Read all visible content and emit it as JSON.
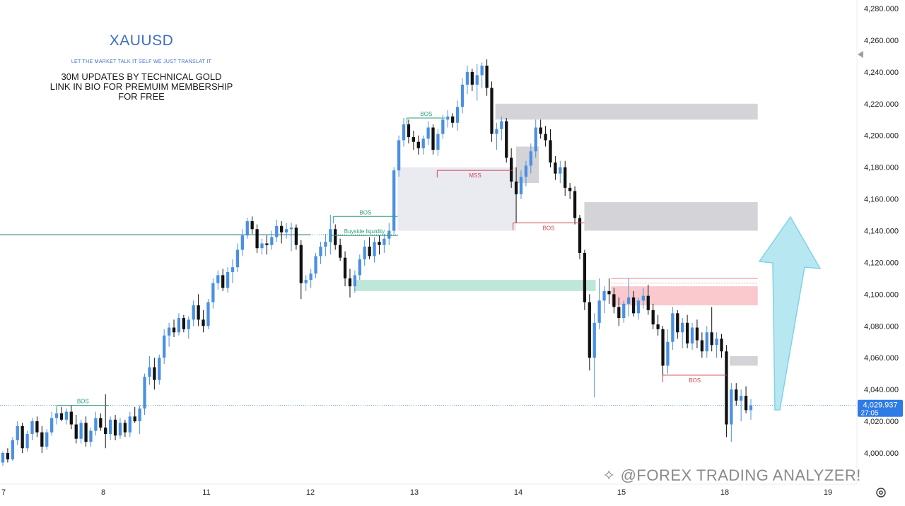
{
  "header": {
    "symbol": "XAUUSD",
    "tagline": "LET THE MARKET TALK IT SELF WE JUST TRANSLAT IT",
    "promo_line1": "30M UPDATES BY TECHNICAL GOLD",
    "promo_line2": "LINK IN BIO FOR PREMUIM MEMBERSHIP",
    "promo_line3": "FOR FREE"
  },
  "watermark": "@FOREX TRADING ANALYZER!",
  "icons": {
    "settings": "gear-icon",
    "scroll": "chevron-left-icon",
    "watermark_logo": "logo-icon"
  },
  "colors": {
    "up_candle": "#4a90e2",
    "down_candle": "#111111",
    "demand_zone": "#8ed6c0",
    "supply_zone": "#f4a0a8",
    "neutral_zone": "#c9c9cf",
    "arrow": "#9fe0ee",
    "price_tag": "#2f7be5"
  },
  "chart_data": {
    "type": "candlestick",
    "title": "XAUUSD",
    "timeframe": "30M",
    "y_axis": {
      "ylim": [
        3992,
        4283
      ],
      "ticks": [
        "4,000.000",
        "4,020.000",
        "4,040.000",
        "4,060.000",
        "4,080.000",
        "4,100.000",
        "4,120.000",
        "4,140.000",
        "4,160.000",
        "4,180.000",
        "4,200.000",
        "4,220.000",
        "4,240.000",
        "4,260.000",
        "4,280.000"
      ]
    },
    "x_axis": {
      "ticks": [
        "7",
        "8",
        "11",
        "12",
        "13",
        "14",
        "15",
        "18",
        "19"
      ]
    },
    "current_price": {
      "value": 4029.937,
      "label": "4,029.937",
      "countdown": "27:05"
    },
    "horizontal_lines": [
      {
        "name": "buyside-liquidity-line",
        "y": 4137.5,
        "style": "solid",
        "color": "#1f6f6a"
      }
    ],
    "annotations": [
      {
        "label": "BOS",
        "color": "#2f9e7d",
        "y": 4030,
        "from_day": 7.55,
        "to_day": 8.17
      },
      {
        "label": "BOS",
        "color": "#2f9e7d",
        "y": 4149,
        "from_day": 12.22,
        "to_day": 12.84
      },
      {
        "label": "Buyside liquidity",
        "color": "#2f9e7d",
        "y": 4137,
        "from_day": 12.2,
        "to_day": 12.84
      },
      {
        "label": "BOS",
        "color": "#2f9e7d",
        "y": 4211,
        "from_day": 12.93,
        "to_day": 13.3
      },
      {
        "label": "MSS",
        "color": "#d0444f",
        "y": 4178,
        "from_day": 13.22,
        "to_day": 13.95
      },
      {
        "label": "BOS",
        "color": "#d0444f",
        "y": 4145,
        "from_day": 13.95,
        "to_day": 14.64
      },
      {
        "label": "BOS",
        "color": "#d0444f",
        "y": 4049,
        "from_day": 15.4,
        "to_day": 16.02
      }
    ],
    "zones": [
      {
        "type": "neutral",
        "from_day": 13.78,
        "to_day": 16.32,
        "y_low": 4210,
        "y_high": 4220
      },
      {
        "type": "neutral-light",
        "from_day": 12.84,
        "to_day": 13.98,
        "y_low": 4140,
        "y_high": 4180
      },
      {
        "type": "neutral",
        "from_day": 13.98,
        "to_day": 14.2,
        "y_low": 4170,
        "y_high": 4193
      },
      {
        "type": "neutral",
        "from_day": 14.64,
        "to_day": 16.32,
        "y_low": 4140,
        "y_high": 4158
      },
      {
        "type": "demand",
        "from_day": 12.42,
        "to_day": 14.75,
        "y_low": 4102,
        "y_high": 4109
      },
      {
        "type": "supply",
        "from_day": 14.9,
        "to_day": 16.32,
        "y_low": 4093,
        "y_high": 4105
      },
      {
        "type": "neutral",
        "from_day": 16.05,
        "to_day": 16.32,
        "y_low": 4055,
        "y_high": 4061
      }
    ],
    "candles": [
      [
        3994,
        4001,
        3992,
        4000
      ],
      [
        4000,
        4003,
        3994,
        3996
      ],
      [
        3996,
        4010,
        3995,
        4008
      ],
      [
        4008,
        4020,
        4005,
        4017
      ],
      [
        4017,
        4019,
        4000,
        4003
      ],
      [
        4003,
        4014,
        4001,
        4012
      ],
      [
        4012,
        4022,
        4008,
        4020
      ],
      [
        4020,
        4023,
        4010,
        4013
      ],
      [
        4013,
        4017,
        4000,
        4004
      ],
      [
        4004,
        4015,
        4002,
        4013
      ],
      [
        4013,
        4026,
        4011,
        4022
      ],
      [
        4022,
        4028,
        4018,
        4025
      ],
      [
        4025,
        4029,
        4020,
        4021
      ],
      [
        4021,
        4028,
        4018,
        4026
      ],
      [
        4026,
        4030,
        4015,
        4018
      ],
      [
        4018,
        4024,
        4006,
        4009
      ],
      [
        4009,
        4021,
        4006,
        4019
      ],
      [
        4019,
        4023,
        4004,
        4007
      ],
      [
        4007,
        4016,
        4004,
        4014
      ],
      [
        4014,
        4026,
        4011,
        4022
      ],
      [
        4022,
        4025,
        4014,
        4016
      ],
      [
        4016,
        4037,
        4003,
        4012
      ],
      [
        4012,
        4023,
        4008,
        4021
      ],
      [
        4021,
        4024,
        4008,
        4011
      ],
      [
        4011,
        4022,
        4009,
        4019
      ],
      [
        4019,
        4021,
        4010,
        4013
      ],
      [
        4013,
        4026,
        4010,
        4023
      ],
      [
        4023,
        4029,
        4019,
        4020
      ],
      [
        4020,
        4030,
        4012,
        4028
      ],
      [
        4028,
        4050,
        4024,
        4048
      ],
      [
        4048,
        4061,
        4043,
        4054
      ],
      [
        4054,
        4060,
        4040,
        4046
      ],
      [
        4046,
        4062,
        4043,
        4060
      ],
      [
        4060,
        4078,
        4056,
        4074
      ],
      [
        4074,
        4082,
        4067,
        4079
      ],
      [
        4079,
        4084,
        4073,
        4076
      ],
      [
        4076,
        4088,
        4074,
        4085
      ],
      [
        4085,
        4087,
        4076,
        4078
      ],
      [
        4078,
        4086,
        4072,
        4084
      ],
      [
        4084,
        4096,
        4080,
        4093
      ],
      [
        4093,
        4100,
        4080,
        4084
      ],
      [
        4084,
        4090,
        4076,
        4080
      ],
      [
        4080,
        4097,
        4078,
        4095
      ],
      [
        4095,
        4110,
        4091,
        4107
      ],
      [
        4107,
        4115,
        4103,
        4112
      ],
      [
        4112,
        4116,
        4102,
        4104
      ],
      [
        4104,
        4117,
        4101,
        4114
      ],
      [
        4114,
        4122,
        4107,
        4117
      ],
      [
        4117,
        4132,
        4114,
        4128
      ],
      [
        4128,
        4141,
        4124,
        4137
      ],
      [
        4137,
        4148,
        4135,
        4146
      ],
      [
        4146,
        4149,
        4138,
        4141
      ],
      [
        4141,
        4144,
        4126,
        4129
      ],
      [
        4129,
        4135,
        4125,
        4132
      ],
      [
        4132,
        4137,
        4125,
        4131
      ],
      [
        4131,
        4140,
        4128,
        4136
      ],
      [
        4136,
        4147,
        4133,
        4143
      ],
      [
        4143,
        4146,
        4132,
        4139
      ],
      [
        4139,
        4145,
        4135,
        4141
      ],
      [
        4141,
        4145,
        4127,
        4142
      ],
      [
        4142,
        4144,
        4128,
        4131
      ],
      [
        4131,
        4134,
        4097,
        4107
      ],
      [
        4107,
        4112,
        4102,
        4109
      ],
      [
        4109,
        4116,
        4104,
        4113
      ],
      [
        4113,
        4126,
        4110,
        4124
      ],
      [
        4124,
        4133,
        4119,
        4130
      ],
      [
        4130,
        4138,
        4124,
        4133
      ],
      [
        4133,
        4150,
        4125,
        4141
      ],
      [
        4141,
        4144,
        4128,
        4131
      ],
      [
        4131,
        4135,
        4121,
        4123
      ],
      [
        4123,
        4127,
        4105,
        4110
      ],
      [
        4110,
        4116,
        4098,
        4105
      ],
      [
        4105,
        4115,
        4101,
        4112
      ],
      [
        4112,
        4125,
        4109,
        4122
      ],
      [
        4122,
        4134,
        4118,
        4130
      ],
      [
        4130,
        4136,
        4122,
        4124
      ],
      [
        4124,
        4136,
        4120,
        4133
      ],
      [
        4133,
        4137,
        4125,
        4131
      ],
      [
        4131,
        4138,
        4126,
        4135
      ],
      [
        4135,
        4145,
        4131,
        4140
      ],
      [
        4140,
        4180,
        4138,
        4178
      ],
      [
        4178,
        4200,
        4174,
        4197
      ],
      [
        4197,
        4211,
        4193,
        4207
      ],
      [
        4207,
        4210,
        4195,
        4199
      ],
      [
        4199,
        4203,
        4191,
        4196
      ],
      [
        4196,
        4200,
        4188,
        4192
      ],
      [
        4192,
        4200,
        4188,
        4198
      ],
      [
        4198,
        4209,
        4194,
        4205
      ],
      [
        4205,
        4207,
        4188,
        4191
      ],
      [
        4191,
        4204,
        4187,
        4201
      ],
      [
        4201,
        4213,
        4198,
        4210
      ],
      [
        4210,
        4216,
        4205,
        4212
      ],
      [
        4212,
        4214,
        4205,
        4208
      ],
      [
        4208,
        4222,
        4203,
        4218
      ],
      [
        4218,
        4236,
        4214,
        4232
      ],
      [
        4232,
        4244,
        4226,
        4240
      ],
      [
        4240,
        4242,
        4228,
        4232
      ],
      [
        4232,
        4245,
        4222,
        4238
      ],
      [
        4238,
        4246,
        4230,
        4244
      ],
      [
        4244,
        4248,
        4225,
        4230
      ],
      [
        4230,
        4234,
        4196,
        4201
      ],
      [
        4201,
        4208,
        4191,
        4204
      ],
      [
        4204,
        4212,
        4197,
        4209
      ],
      [
        4209,
        4211,
        4183,
        4186
      ],
      [
        4186,
        4192,
        4167,
        4171
      ],
      [
        4171,
        4180,
        4145,
        4163
      ],
      [
        4163,
        4178,
        4160,
        4174
      ],
      [
        4174,
        4184,
        4168,
        4181
      ],
      [
        4181,
        4195,
        4176,
        4190
      ],
      [
        4190,
        4210,
        4186,
        4205
      ],
      [
        4205,
        4210,
        4198,
        4201
      ],
      [
        4201,
        4206,
        4193,
        4197
      ],
      [
        4197,
        4204,
        4180,
        4183
      ],
      [
        4183,
        4187,
        4172,
        4176
      ],
      [
        4176,
        4184,
        4170,
        4180
      ],
      [
        4180,
        4184,
        4162,
        4167
      ],
      [
        4167,
        4170,
        4160,
        4165
      ],
      [
        4165,
        4168,
        4144,
        4148
      ],
      [
        4148,
        4150,
        4122,
        4126
      ],
      [
        4126,
        4128,
        4090,
        4095
      ],
      [
        4095,
        4100,
        4052,
        4060
      ],
      [
        4060,
        4088,
        4035,
        4082
      ],
      [
        4082,
        4110,
        4078,
        4096
      ],
      [
        4096,
        4105,
        4088,
        4102
      ],
      [
        4102,
        4110,
        4094,
        4100
      ],
      [
        4100,
        4104,
        4088,
        4092
      ],
      [
        4092,
        4098,
        4080,
        4085
      ],
      [
        4085,
        4096,
        4082,
        4094
      ],
      [
        4094,
        4110,
        4086,
        4098
      ],
      [
        4098,
        4102,
        4086,
        4088
      ],
      [
        4088,
        4098,
        4084,
        4096
      ],
      [
        4096,
        4104,
        4091,
        4099
      ],
      [
        4099,
        4106,
        4087,
        4090
      ],
      [
        4090,
        4094,
        4078,
        4081
      ],
      [
        4081,
        4087,
        4074,
        4078
      ],
      [
        4078,
        4080,
        4048,
        4055
      ],
      [
        4055,
        4078,
        4050,
        4070
      ],
      [
        4070,
        4092,
        4065,
        4088
      ],
      [
        4088,
        4090,
        4072,
        4076
      ],
      [
        4076,
        4085,
        4066,
        4082
      ],
      [
        4082,
        4087,
        4066,
        4069
      ],
      [
        4069,
        4082,
        4065,
        4079
      ],
      [
        4079,
        4084,
        4066,
        4071
      ],
      [
        4071,
        4076,
        4060,
        4064
      ],
      [
        4064,
        4080,
        4060,
        4076
      ],
      [
        4076,
        4092,
        4064,
        4068
      ],
      [
        4068,
        4076,
        4060,
        4072
      ],
      [
        4072,
        4075,
        4060,
        4064
      ],
      [
        4064,
        4068,
        4010,
        4018
      ],
      [
        4018,
        4044,
        4007,
        4040
      ],
      [
        4040,
        4044,
        4030,
        4033
      ],
      [
        4033,
        4040,
        4020,
        4036
      ],
      [
        4036,
        4042,
        4025,
        4027
      ],
      [
        4027,
        4034,
        4021,
        4030
      ]
    ],
    "grid": false,
    "legend": "none"
  }
}
